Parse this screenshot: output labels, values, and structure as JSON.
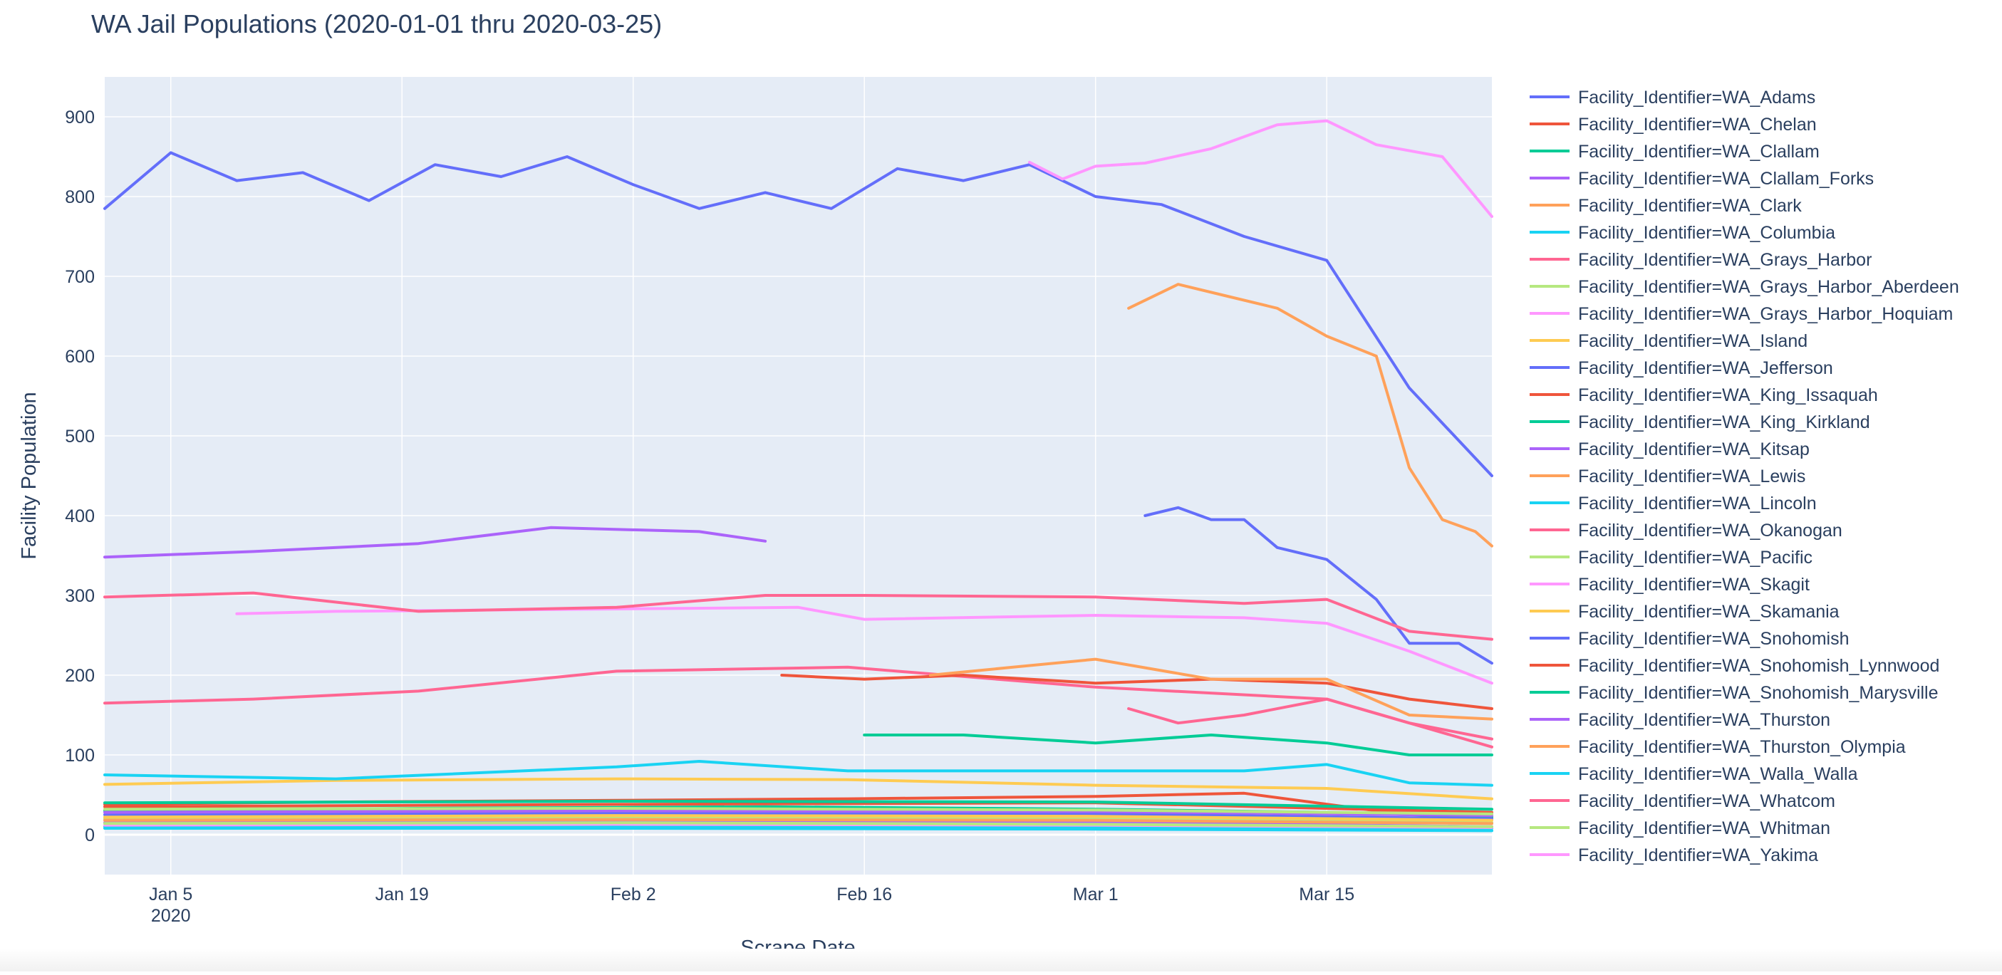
{
  "chart_data": {
    "type": "line",
    "title": "WA Jail Populations (2020-01-01 thru 2020-03-25)",
    "xlabel": "Scrape Date",
    "ylabel": "Facility Population",
    "x_range": [
      "2020-01-01",
      "2020-03-25"
    ],
    "ylim": [
      -50,
      950
    ],
    "y_ticks": [
      0,
      100,
      200,
      300,
      400,
      500,
      600,
      700,
      800,
      900
    ],
    "x_ticks": [
      {
        "date": "2020-01-05",
        "label": "Jan 5",
        "sublabel": "2020"
      },
      {
        "date": "2020-01-19",
        "label": "Jan 19"
      },
      {
        "date": "2020-02-02",
        "label": "Feb 2"
      },
      {
        "date": "2020-02-16",
        "label": "Feb 16"
      },
      {
        "date": "2020-03-01",
        "label": "Mar 1"
      },
      {
        "date": "2020-03-15",
        "label": "Mar 15"
      }
    ],
    "grid": true,
    "legend_position": "right",
    "series": [
      {
        "name": "Facility_Identifier=WA_Adams",
        "color": "#636efa",
        "x": [
          "2020-01-01",
          "2020-01-05",
          "2020-01-09",
          "2020-01-13",
          "2020-01-17",
          "2020-01-21",
          "2020-01-25",
          "2020-01-29",
          "2020-02-02",
          "2020-02-06",
          "2020-02-10",
          "2020-02-14",
          "2020-02-18",
          "2020-02-22",
          "2020-02-26",
          "2020-03-01",
          "2020-03-05",
          "2020-03-10",
          "2020-03-15",
          "2020-03-20",
          "2020-03-25"
        ],
        "y": [
          785,
          855,
          820,
          830,
          795,
          840,
          825,
          850,
          815,
          785,
          805,
          785,
          835,
          820,
          840,
          800,
          790,
          750,
          720,
          560,
          450
        ]
      },
      {
        "name": "Facility_Identifier=WA_Chelan",
        "color": "#ef553b",
        "x": [
          "2020-01-01",
          "2020-01-15",
          "2020-02-01",
          "2020-02-15",
          "2020-03-01",
          "2020-03-10",
          "2020-03-18",
          "2020-03-25"
        ],
        "y": [
          38,
          41,
          43,
          45,
          48,
          52,
          30,
          22
        ]
      },
      {
        "name": "Facility_Identifier=WA_Clallam",
        "color": "#00cc96",
        "x": [
          "2020-01-01",
          "2020-01-20",
          "2020-02-10",
          "2020-03-01",
          "2020-03-15",
          "2020-03-25"
        ],
        "y": [
          30,
          33,
          35,
          32,
          28,
          22
        ]
      },
      {
        "name": "Facility_Identifier=WA_Clallam_Forks",
        "color": "#ab63fa",
        "x": [
          "2020-01-01",
          "2020-02-01",
          "2020-03-01",
          "2020-03-25"
        ],
        "y": [
          15,
          17,
          16,
          10
        ]
      },
      {
        "name": "Facility_Identifier=WA_Clark",
        "color": "#ffa15a",
        "x": [
          "2020-03-03",
          "2020-03-06",
          "2020-03-09",
          "2020-03-12",
          "2020-03-15",
          "2020-03-18",
          "2020-03-20",
          "2020-03-22",
          "2020-03-24",
          "2020-03-25"
        ],
        "y": [
          660,
          690,
          675,
          660,
          625,
          600,
          460,
          395,
          380,
          362
        ]
      },
      {
        "name": "Facility_Identifier=WA_Columbia",
        "color": "#19d3f3",
        "x": [
          "2020-01-01",
          "2020-02-01",
          "2020-03-01",
          "2020-03-25"
        ],
        "y": [
          10,
          11,
          10,
          8
        ]
      },
      {
        "name": "Facility_Identifier=WA_Grays_Harbor",
        "color": "#ff6692",
        "x": [
          "2020-01-01",
          "2020-01-10",
          "2020-01-20",
          "2020-02-01",
          "2020-02-15",
          "2020-03-01",
          "2020-03-15",
          "2020-03-25"
        ],
        "y": [
          165,
          170,
          180,
          205,
          210,
          185,
          170,
          110
        ]
      },
      {
        "name": "Facility_Identifier=WA_Grays_Harbor_Aberdeen",
        "color": "#b6e880",
        "x": [
          "2020-01-01",
          "2020-02-01",
          "2020-03-01",
          "2020-03-25"
        ],
        "y": [
          20,
          22,
          21,
          15
        ]
      },
      {
        "name": "Facility_Identifier=WA_Grays_Harbor_Hoquiam",
        "color": "#ff97ff",
        "x": [
          "2020-01-01",
          "2020-02-01",
          "2020-03-01",
          "2020-03-25"
        ],
        "y": [
          12,
          13,
          12,
          9
        ]
      },
      {
        "name": "Facility_Identifier=WA_Island",
        "color": "#fecb52",
        "x": [
          "2020-01-01",
          "2020-01-15",
          "2020-02-01",
          "2020-02-15",
          "2020-03-01",
          "2020-03-15",
          "2020-03-25"
        ],
        "y": [
          63,
          68,
          70,
          69,
          62,
          58,
          45
        ]
      },
      {
        "name": "Facility_Identifier=WA_Jefferson",
        "color": "#636efa",
        "x": [
          "2020-01-01",
          "2020-02-01",
          "2020-03-01",
          "2020-03-25"
        ],
        "y": [
          25,
          27,
          26,
          20
        ]
      },
      {
        "name": "Facility_Identifier=WA_King_Issaquah",
        "color": "#ef553b",
        "x": [
          "2020-02-11",
          "2020-02-16",
          "2020-02-22",
          "2020-03-01",
          "2020-03-08",
          "2020-03-15",
          "2020-03-20",
          "2020-03-25"
        ],
        "y": [
          200,
          195,
          200,
          190,
          195,
          190,
          170,
          158
        ]
      },
      {
        "name": "Facility_Identifier=WA_King_Kirkland",
        "color": "#00cc96",
        "x": [
          "2020-02-16",
          "2020-02-22",
          "2020-03-01",
          "2020-03-08",
          "2020-03-15",
          "2020-03-20",
          "2020-03-25"
        ],
        "y": [
          125,
          125,
          115,
          125,
          115,
          100,
          100
        ]
      },
      {
        "name": "Facility_Identifier=WA_Kitsap",
        "color": "#ab63fa",
        "x": [
          "2020-01-01",
          "2020-01-10",
          "2020-01-20",
          "2020-01-28",
          "2020-02-06",
          "2020-02-10"
        ],
        "y": [
          348,
          355,
          365,
          385,
          380,
          368
        ]
      },
      {
        "name": "Facility_Identifier=WA_Lewis",
        "color": "#ffa15a",
        "x": [
          "2020-02-20",
          "2020-02-25",
          "2020-03-01",
          "2020-03-08",
          "2020-03-15",
          "2020-03-20",
          "2020-03-25"
        ],
        "y": [
          200,
          210,
          220,
          195,
          195,
          150,
          145
        ]
      },
      {
        "name": "Facility_Identifier=WA_Lincoln",
        "color": "#19d3f3",
        "x": [
          "2020-01-01",
          "2020-02-01",
          "2020-03-01",
          "2020-03-25"
        ],
        "y": [
          8,
          8,
          7,
          5
        ]
      },
      {
        "name": "Facility_Identifier=WA_Okanogan",
        "color": "#ff6692",
        "x": [
          "2020-03-03",
          "2020-03-06",
          "2020-03-10",
          "2020-03-15",
          "2020-03-20",
          "2020-03-25"
        ],
        "y": [
          158,
          140,
          150,
          170,
          140,
          120
        ]
      },
      {
        "name": "Facility_Identifier=WA_Pacific",
        "color": "#b6e880",
        "x": [
          "2020-01-01",
          "2020-02-01",
          "2020-03-01",
          "2020-03-25"
        ],
        "y": [
          14,
          15,
          13,
          10
        ]
      },
      {
        "name": "Facility_Identifier=WA_Skagit",
        "color": "#ff97ff",
        "x": [
          "2020-01-09",
          "2020-01-15",
          "2020-02-01",
          "2020-02-12",
          "2020-02-16",
          "2020-03-01",
          "2020-03-10",
          "2020-03-15",
          "2020-03-20",
          "2020-03-25"
        ],
        "y": [
          277,
          280,
          283,
          285,
          270,
          275,
          272,
          265,
          230,
          190
        ]
      },
      {
        "name": "Facility_Identifier=WA_Skamania",
        "color": "#fecb52",
        "x": [
          "2020-01-01",
          "2020-02-01",
          "2020-03-01",
          "2020-03-25"
        ],
        "y": [
          22,
          24,
          23,
          18
        ]
      },
      {
        "name": "Facility_Identifier=WA_Snohomish",
        "color": "#636efa",
        "x": [
          "2020-03-04",
          "2020-03-06",
          "2020-03-08",
          "2020-03-10",
          "2020-03-12",
          "2020-03-15",
          "2020-03-18",
          "2020-03-20",
          "2020-03-23",
          "2020-03-25"
        ],
        "y": [
          400,
          410,
          395,
          395,
          360,
          345,
          295,
          240,
          240,
          215
        ]
      },
      {
        "name": "Facility_Identifier=WA_Snohomish_Lynnwood",
        "color": "#ef553b",
        "x": [
          "2020-01-01",
          "2020-02-01",
          "2020-03-01",
          "2020-03-25"
        ],
        "y": [
          35,
          38,
          40,
          28
        ]
      },
      {
        "name": "Facility_Identifier=WA_Snohomish_Marysville",
        "color": "#00cc96",
        "x": [
          "2020-01-01",
          "2020-02-01",
          "2020-03-01",
          "2020-03-25"
        ],
        "y": [
          40,
          42,
          41,
          32
        ]
      },
      {
        "name": "Facility_Identifier=WA_Thurston",
        "color": "#ab63fa",
        "x": [
          "2020-01-01",
          "2020-02-01",
          "2020-03-01",
          "2020-03-25"
        ],
        "y": [
          28,
          30,
          29,
          24
        ]
      },
      {
        "name": "Facility_Identifier=WA_Thurston_Olympia",
        "color": "#ffa15a",
        "x": [
          "2020-01-01",
          "2020-02-01",
          "2020-03-01",
          "2020-03-25"
        ],
        "y": [
          18,
          19,
          18,
          14
        ]
      },
      {
        "name": "Facility_Identifier=WA_Walla_Walla",
        "color": "#19d3f3",
        "x": [
          "2020-01-01",
          "2020-01-15",
          "2020-02-01",
          "2020-02-06",
          "2020-02-15",
          "2020-03-01",
          "2020-03-10",
          "2020-03-15",
          "2020-03-20",
          "2020-03-25"
        ],
        "y": [
          75,
          70,
          85,
          92,
          80,
          80,
          80,
          88,
          65,
          62
        ]
      },
      {
        "name": "Facility_Identifier=WA_Whatcom",
        "color": "#ff6692",
        "x": [
          "2020-01-01",
          "2020-01-10",
          "2020-01-20",
          "2020-02-01",
          "2020-02-10",
          "2020-02-16",
          "2020-03-01",
          "2020-03-10",
          "2020-03-15",
          "2020-03-20",
          "2020-03-25"
        ],
        "y": [
          298,
          303,
          280,
          285,
          300,
          300,
          298,
          290,
          295,
          255,
          245
        ]
      },
      {
        "name": "Facility_Identifier=WA_Whitman",
        "color": "#b6e880",
        "x": [
          "2020-01-01",
          "2020-02-01",
          "2020-03-01",
          "2020-03-25"
        ],
        "y": [
          32,
          33,
          31,
          26
        ]
      },
      {
        "name": "Facility_Identifier=WA_Yakima",
        "color": "#ff97ff",
        "x": [
          "2020-02-26",
          "2020-02-28",
          "2020-03-01",
          "2020-03-04",
          "2020-03-08",
          "2020-03-12",
          "2020-03-15",
          "2020-03-18",
          "2020-03-22",
          "2020-03-25"
        ],
        "y": [
          843,
          822,
          838,
          842,
          860,
          890,
          895,
          865,
          850,
          775
        ]
      }
    ]
  }
}
